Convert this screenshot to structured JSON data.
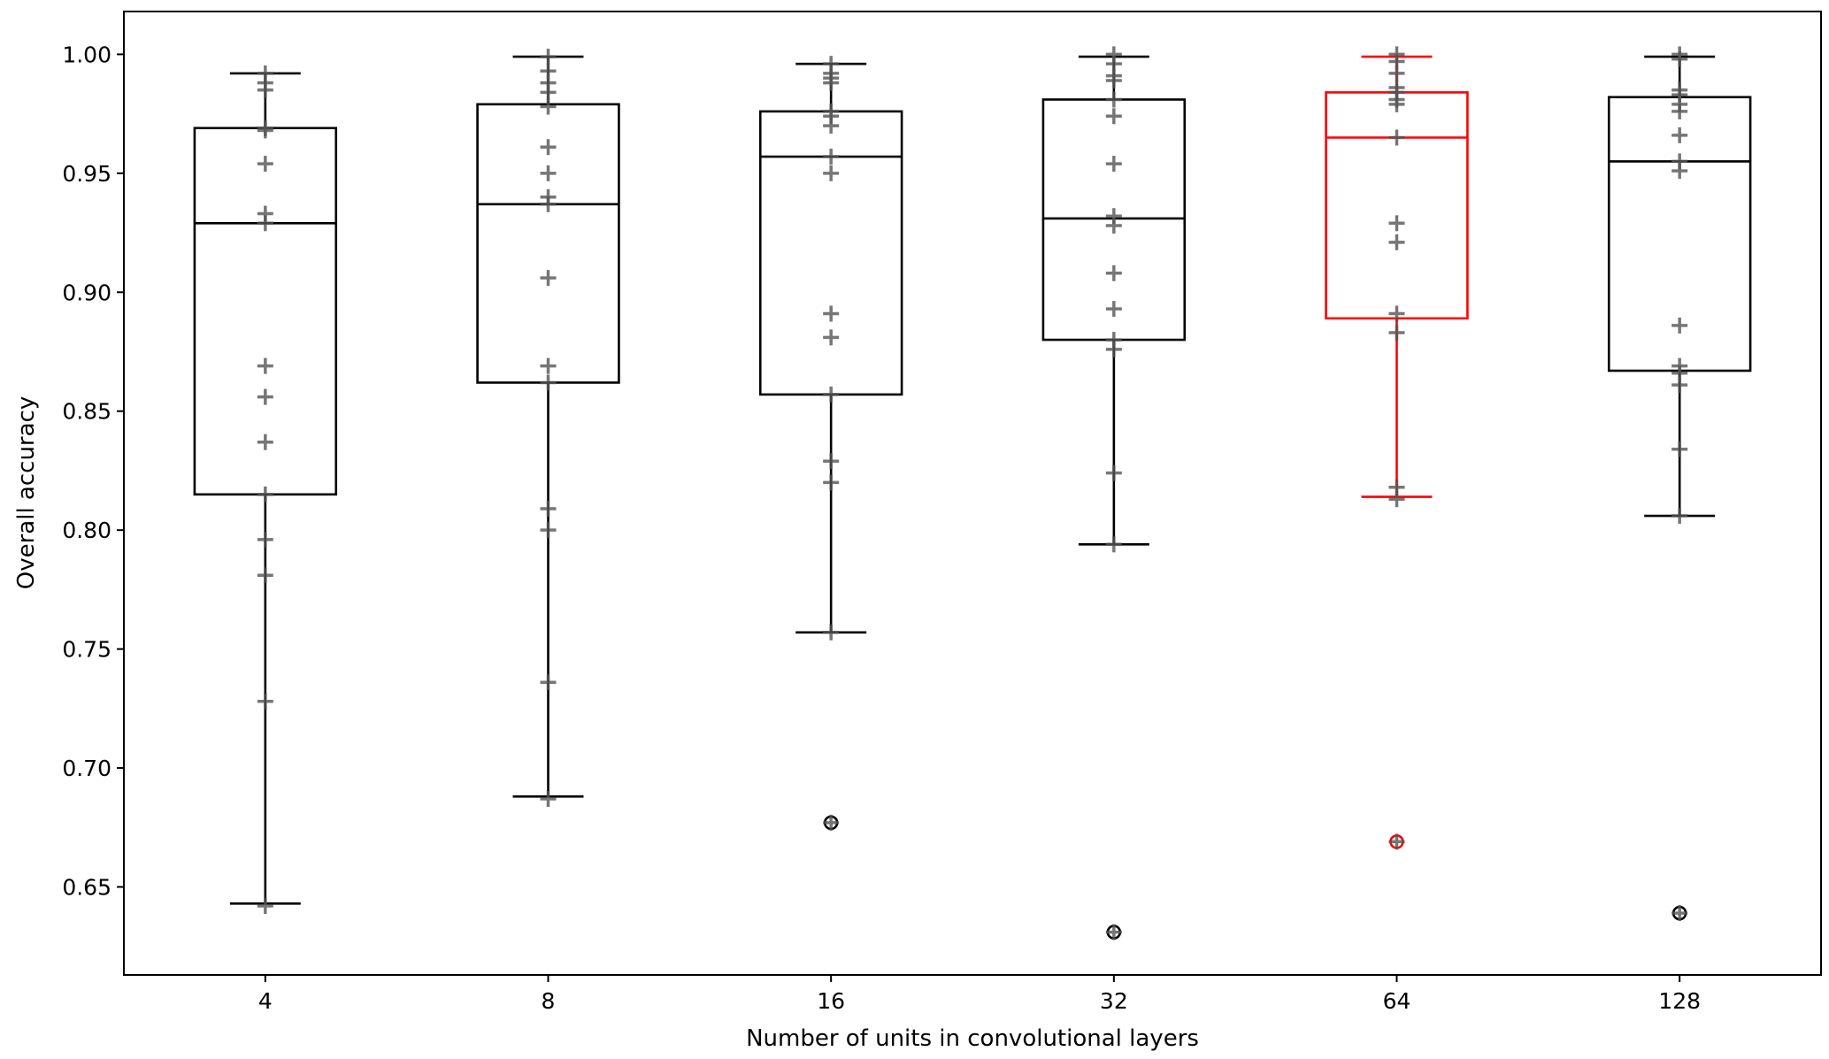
{
  "chart_data": {
    "type": "box",
    "title": "",
    "xlabel": "Number of units in convolutional layers",
    "ylabel": "Overall accuracy",
    "categories": [
      "4",
      "8",
      "16",
      "32",
      "64",
      "128"
    ],
    "ylim": [
      0.613,
      1.018
    ],
    "yticks": [
      "0.65",
      "0.70",
      "0.75",
      "0.80",
      "0.85",
      "0.90",
      "0.95",
      "1.00"
    ],
    "grid": false,
    "highlight_category": "64",
    "colors": {
      "default": "#000000",
      "highlight": "#ff0000",
      "points": "#555555"
    },
    "boxes": [
      {
        "whisker_high": 0.992,
        "q3": 0.969,
        "median": 0.929,
        "q1": 0.815,
        "whisker_low": 0.643,
        "outliers": [],
        "points": [
          0.992,
          0.988,
          0.985,
          0.969,
          0.968,
          0.954,
          0.933,
          0.929,
          0.869,
          0.856,
          0.837,
          0.815,
          0.796,
          0.781,
          0.728,
          0.642
        ]
      },
      {
        "whisker_high": 0.999,
        "q3": 0.979,
        "median": 0.937,
        "q1": 0.862,
        "whisker_low": 0.688,
        "outliers": [],
        "points": [
          0.999,
          0.993,
          0.988,
          0.984,
          0.978,
          0.961,
          0.95,
          0.94,
          0.937,
          0.906,
          0.869,
          0.862,
          0.809,
          0.8,
          0.736,
          0.687
        ]
      },
      {
        "whisker_high": 0.996,
        "q3": 0.976,
        "median": 0.957,
        "q1": 0.857,
        "whisker_low": 0.757,
        "outliers": [
          0.677
        ],
        "points": [
          0.996,
          0.992,
          0.99,
          0.988,
          0.976,
          0.974,
          0.97,
          0.957,
          0.95,
          0.891,
          0.881,
          0.857,
          0.829,
          0.82,
          0.757,
          0.677
        ]
      },
      {
        "whisker_high": 0.999,
        "q3": 0.981,
        "median": 0.931,
        "q1": 0.88,
        "whisker_low": 0.794,
        "outliers": [
          0.631
        ],
        "points": [
          1.0,
          0.996,
          0.991,
          0.989,
          0.981,
          0.974,
          0.954,
          0.932,
          0.928,
          0.908,
          0.893,
          0.88,
          0.876,
          0.824,
          0.794,
          0.631
        ]
      },
      {
        "whisker_high": 0.999,
        "q3": 0.984,
        "median": 0.965,
        "q1": 0.889,
        "whisker_low": 0.814,
        "outliers": [
          0.669
        ],
        "points": [
          1.0,
          0.997,
          0.992,
          0.986,
          0.984,
          0.981,
          0.979,
          0.965,
          0.929,
          0.921,
          0.891,
          0.883,
          0.818,
          0.813,
          0.669
        ]
      },
      {
        "whisker_high": 0.999,
        "q3": 0.982,
        "median": 0.955,
        "q1": 0.867,
        "whisker_low": 0.806,
        "outliers": [
          0.639
        ],
        "points": [
          1.0,
          0.998,
          0.985,
          0.983,
          0.979,
          0.976,
          0.966,
          0.955,
          0.951,
          0.886,
          0.869,
          0.866,
          0.861,
          0.834,
          0.806,
          0.639
        ]
      }
    ]
  }
}
